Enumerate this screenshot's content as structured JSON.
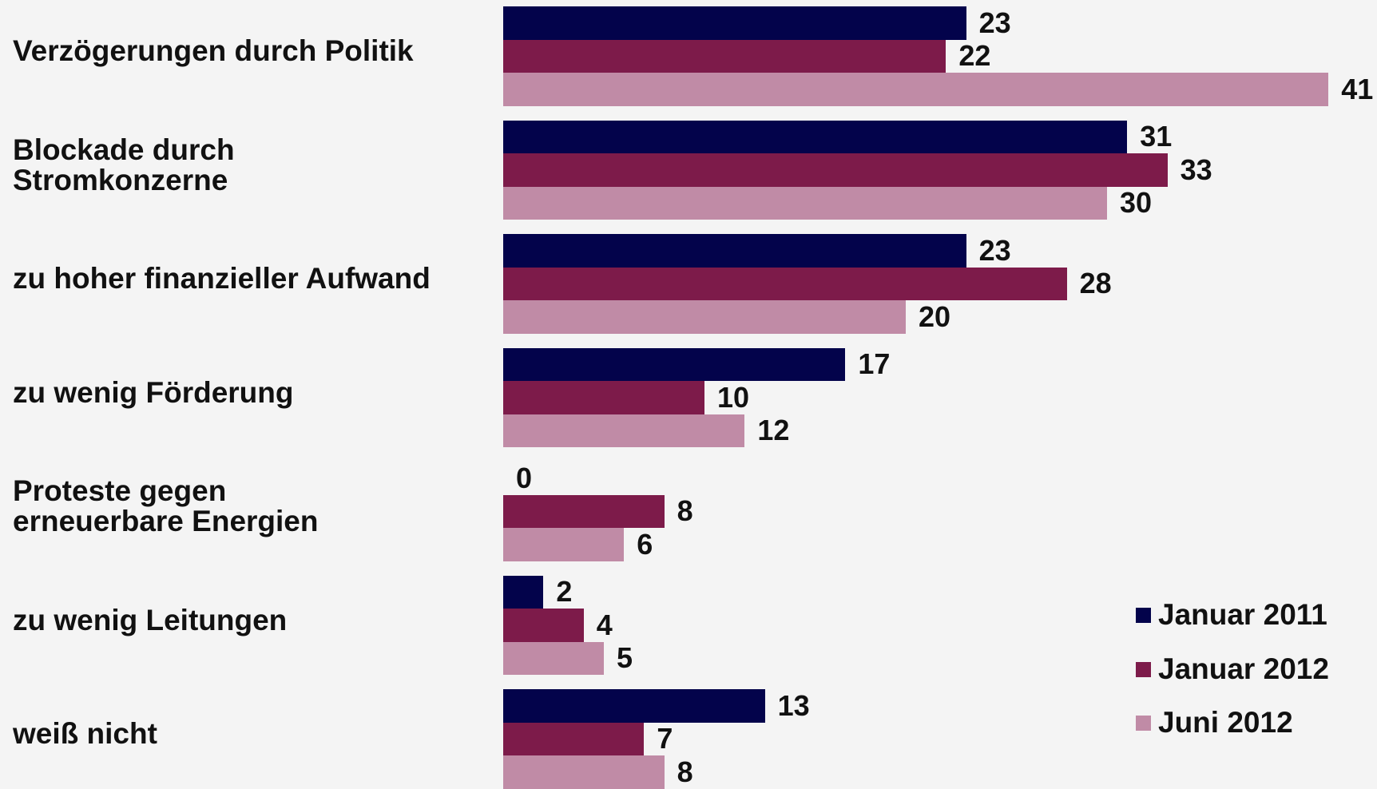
{
  "chart_data": {
    "type": "bar",
    "orientation": "horizontal",
    "categories": [
      "Verzögerungen durch Politik",
      "Blockade durch\nStromkonzerne",
      "zu hoher finanzieller Aufwand",
      "zu wenig Förderung",
      "Proteste gegen\nerneuerbare Energien",
      "zu wenig Leitungen",
      "weiß nicht"
    ],
    "series": [
      {
        "name": "Januar 2011",
        "color": "#03034b",
        "values": [
          23,
          31,
          23,
          17,
          0,
          2,
          13
        ]
      },
      {
        "name": "Januar 2012",
        "color": "#7d1b4a",
        "values": [
          22,
          33,
          28,
          10,
          8,
          4,
          7
        ]
      },
      {
        "name": "Juni 2012",
        "color": "#c08ba6",
        "values": [
          41,
          30,
          20,
          12,
          6,
          5,
          8
        ]
      }
    ],
    "legend": "bottom-right"
  }
}
